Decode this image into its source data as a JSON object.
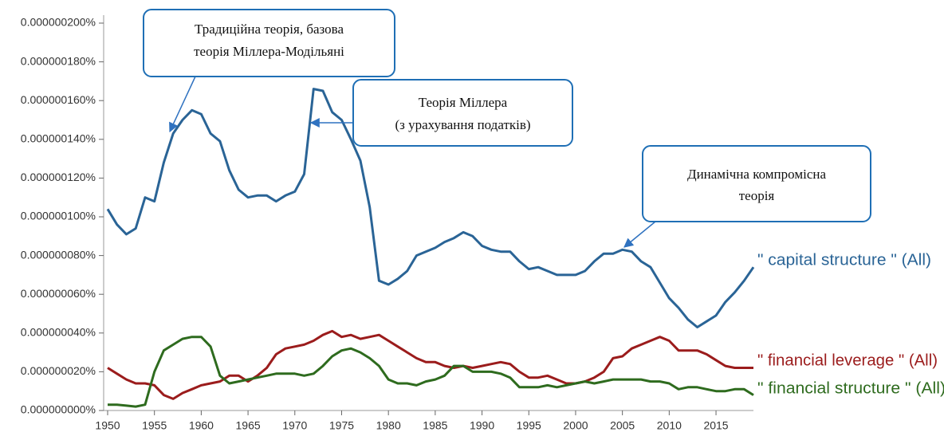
{
  "chart_data": {
    "type": "line",
    "x": [
      1950,
      1951,
      1952,
      1953,
      1954,
      1955,
      1956,
      1957,
      1958,
      1959,
      1960,
      1961,
      1962,
      1963,
      1964,
      1965,
      1966,
      1967,
      1968,
      1969,
      1970,
      1971,
      1972,
      1973,
      1974,
      1975,
      1976,
      1977,
      1978,
      1979,
      1980,
      1981,
      1982,
      1983,
      1984,
      1985,
      1986,
      1987,
      1988,
      1989,
      1990,
      1991,
      1992,
      1993,
      1994,
      1995,
      1996,
      1997,
      1998,
      1999,
      2000,
      2001,
      2002,
      2003,
      2004,
      2005,
      2006,
      2007,
      2008,
      2009,
      2010,
      2011,
      2012,
      2013,
      2014,
      2015,
      2016,
      2017,
      2018,
      2019
    ],
    "series": [
      {
        "name": "\" capital structure \" (All)",
        "color": "#2a6496",
        "values": [
          1.04e-07,
          9.6e-08,
          9.1e-08,
          9.4e-08,
          1.1e-07,
          1.08e-07,
          1.28e-07,
          1.43e-07,
          1.5e-07,
          1.55e-07,
          1.53e-07,
          1.43e-07,
          1.39e-07,
          1.24e-07,
          1.14e-07,
          1.1e-07,
          1.11e-07,
          1.11e-07,
          1.08e-07,
          1.11e-07,
          1.13e-07,
          1.22e-07,
          1.66e-07,
          1.65e-07,
          1.54e-07,
          1.5e-07,
          1.4e-07,
          1.29e-07,
          1.05e-07,
          6.7e-08,
          6.5e-08,
          6.8e-08,
          7.2e-08,
          8e-08,
          8.2e-08,
          8.4e-08,
          8.7e-08,
          8.9e-08,
          9.2e-08,
          9e-08,
          8.5e-08,
          8.3e-08,
          8.2e-08,
          8.2e-08,
          7.7e-08,
          7.3e-08,
          7.4e-08,
          7.2e-08,
          7e-08,
          7e-08,
          7e-08,
          7.2e-08,
          7.7e-08,
          8.1e-08,
          8.1e-08,
          8.3e-08,
          8.2e-08,
          7.7e-08,
          7.4e-08,
          6.6e-08,
          5.8e-08,
          5.3e-08,
          4.7e-08,
          4.3e-08,
          4.6e-08,
          4.9e-08,
          5.6e-08,
          6.1e-08,
          6.7e-08,
          7.4e-08
        ]
      },
      {
        "name": "\" financial leverage \" (All)",
        "color": "#9b1c1c",
        "values": [
          2.2e-08,
          1.9e-08,
          1.6e-08,
          1.4e-08,
          1.4e-08,
          1.3e-08,
          8e-09,
          6e-09,
          9e-09,
          1.1e-08,
          1.3e-08,
          1.4e-08,
          1.5e-08,
          1.8e-08,
          1.8e-08,
          1.5e-08,
          1.8e-08,
          2.2e-08,
          2.9e-08,
          3.2e-08,
          3.3e-08,
          3.4e-08,
          3.6e-08,
          3.9e-08,
          4.1e-08,
          3.8e-08,
          3.9e-08,
          3.7e-08,
          3.8e-08,
          3.9e-08,
          3.6e-08,
          3.3e-08,
          3e-08,
          2.7e-08,
          2.5e-08,
          2.5e-08,
          2.3e-08,
          2.2e-08,
          2.3e-08,
          2.2e-08,
          2.3e-08,
          2.4e-08,
          2.5e-08,
          2.4e-08,
          2e-08,
          1.7e-08,
          1.7e-08,
          1.8e-08,
          1.6e-08,
          1.4e-08,
          1.4e-08,
          1.5e-08,
          1.7e-08,
          2e-08,
          2.7e-08,
          2.8e-08,
          3.2e-08,
          3.4e-08,
          3.6e-08,
          3.8e-08,
          3.6e-08,
          3.1e-08,
          3.1e-08,
          3.1e-08,
          2.9e-08,
          2.6e-08,
          2.3e-08,
          2.2e-08,
          2.2e-08,
          2.2e-08
        ]
      },
      {
        "name": "\" financial structure \" (All)",
        "color": "#2e6b1e",
        "values": [
          3e-09,
          3e-09,
          2.5e-09,
          2e-09,
          3e-09,
          2e-08,
          3.1e-08,
          3.4e-08,
          3.7e-08,
          3.8e-08,
          3.8e-08,
          3.3e-08,
          1.8e-08,
          1.4e-08,
          1.5e-08,
          1.6e-08,
          1.7e-08,
          1.8e-08,
          1.9e-08,
          1.9e-08,
          1.9e-08,
          1.8e-08,
          1.9e-08,
          2.3e-08,
          2.8e-08,
          3.1e-08,
          3.2e-08,
          3e-08,
          2.7e-08,
          2.3e-08,
          1.6e-08,
          1.4e-08,
          1.4e-08,
          1.3e-08,
          1.5e-08,
          1.6e-08,
          1.8e-08,
          2.3e-08,
          2.3e-08,
          2e-08,
          2e-08,
          2e-08,
          1.9e-08,
          1.7e-08,
          1.2e-08,
          1.2e-08,
          1.2e-08,
          1.3e-08,
          1.2e-08,
          1.3e-08,
          1.4e-08,
          1.5e-08,
          1.4e-08,
          1.5e-08,
          1.6e-08,
          1.6e-08,
          1.6e-08,
          1.6e-08,
          1.5e-08,
          1.5e-08,
          1.4e-08,
          1.1e-08,
          1.2e-08,
          1.2e-08,
          1.1e-08,
          1e-08,
          1e-08,
          1.1e-08,
          1.1e-08,
          8e-09
        ]
      }
    ],
    "xlim": [
      1950,
      2019
    ],
    "xticks": [
      1950,
      1955,
      1960,
      1965,
      1970,
      1975,
      1980,
      1985,
      1990,
      1995,
      2000,
      2005,
      2010,
      2015
    ],
    "ylim": [
      0,
      2e-07
    ],
    "yticks": [
      {
        "value": 0,
        "label": "0.000000000%"
      },
      {
        "value": 2e-08,
        "label": "0.000000020%"
      },
      {
        "value": 4e-08,
        "label": "0.000000040%"
      },
      {
        "value": 6e-08,
        "label": "0.000000060%"
      },
      {
        "value": 8e-08,
        "label": "0.000000080%"
      },
      {
        "value": 1e-07,
        "label": "0.000000100%"
      },
      {
        "value": 1.2e-07,
        "label": "0.000000120%"
      },
      {
        "value": 1.4e-07,
        "label": "0.000000140%"
      },
      {
        "value": 1.6e-07,
        "label": "0.000000160%"
      },
      {
        "value": 1.8e-07,
        "label": "0.000000180%"
      },
      {
        "value": 2e-07,
        "label": "0.000000200%"
      }
    ],
    "annotations": [
      {
        "lines": [
          "Традиційна теорія, базова",
          "теорія Міллера-Модільяні"
        ]
      },
      {
        "lines": [
          "Теорія Міллера",
          "(з урахування податків)"
        ]
      },
      {
        "lines": [
          "Динамічна компромісна",
          "теорія"
        ]
      }
    ]
  }
}
